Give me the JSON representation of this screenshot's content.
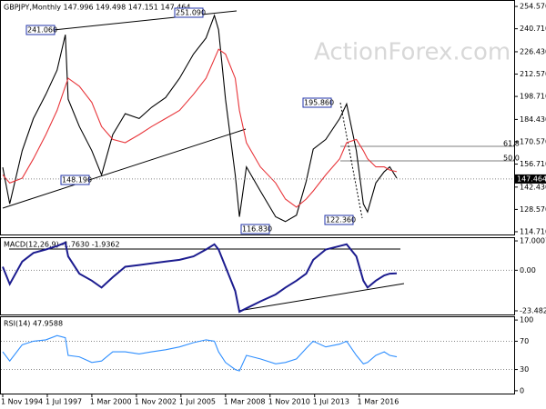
{
  "chart_data": [
    {
      "type": "line",
      "title": "GBPJPY,Monthly  147.996 149.498 147.151 147.464",
      "x": [
        "1994-11",
        "1995-04",
        "1996-01",
        "1996-09",
        "1997-06",
        "1998-02",
        "1998-08",
        "1998-10",
        "1999-06",
        "2000-03",
        "2000-10",
        "2001-06",
        "2002-03",
        "2003-01",
        "2003-10",
        "2004-08",
        "2005-06",
        "2006-04",
        "2007-01",
        "2007-07",
        "2007-10",
        "2008-03",
        "2008-10",
        "2009-01",
        "2009-06",
        "2010-04",
        "2011-03",
        "2011-10",
        "2012-06",
        "2013-01",
        "2013-06",
        "2014-03",
        "2015-01",
        "2015-06",
        "2016-01",
        "2016-06",
        "2016-09",
        "2017-03",
        "2017-09",
        "2018-01",
        "2018-06"
      ],
      "series": [
        {
          "name": "GBPJPY",
          "color": "#000000",
          "values": [
            154.7,
            132,
            165,
            185,
            200,
            215,
            237,
            197,
            180,
            165,
            150,
            175,
            188,
            185,
            192,
            198,
            210,
            225,
            235,
            249,
            240,
            197,
            150,
            124,
            155,
            140,
            124,
            121,
            125,
            146,
            166,
            172,
            185,
            194,
            165,
            132,
            127,
            145,
            152,
            155,
            148
          ]
        },
        {
          "name": "MA",
          "color": "#e8353a",
          "values": [
            150,
            145,
            148,
            160,
            175,
            190,
            205,
            210,
            205,
            195,
            180,
            172,
            170,
            175,
            180,
            185,
            190,
            200,
            210,
            222,
            228,
            225,
            210,
            190,
            170,
            155,
            145,
            135,
            130,
            135,
            140,
            150,
            160,
            170,
            172,
            165,
            160,
            155,
            155,
            153,
            152
          ]
        }
      ],
      "last": 147.464,
      "annotations": [
        "251.090",
        "241.060",
        "195.860",
        "148.190",
        "116.830",
        "122.360",
        "61.8",
        "50.0"
      ],
      "watermark": "ActionForex.com",
      "ylim": [
        113,
        258
      ],
      "yticks": [
        {
          "value": 254.57,
          "label": "254.570"
        },
        {
          "value": 240.71,
          "label": "240.710"
        },
        {
          "value": 226.43,
          "label": "226.430"
        },
        {
          "value": 212.57,
          "label": "212.570"
        },
        {
          "value": 198.71,
          "label": "198.710"
        },
        {
          "value": 184.43,
          "label": "184.430"
        },
        {
          "value": 170.57,
          "label": "170.570"
        },
        {
          "value": 156.71,
          "label": "156.710"
        },
        {
          "value": 142.43,
          "label": "142.430"
        },
        {
          "value": 128.57,
          "label": "128.570"
        },
        {
          "value": 114.71,
          "label": "114.710"
        }
      ]
    },
    {
      "type": "line",
      "title": "MACD(12,26,9) -1.7630 -1.9362",
      "x": [
        "1994-11",
        "1995-04",
        "1996-01",
        "1996-09",
        "1997-06",
        "1998-02",
        "1998-08",
        "1998-10",
        "1999-06",
        "2000-03",
        "2000-10",
        "2001-06",
        "2002-03",
        "2003-01",
        "2003-10",
        "2004-08",
        "2005-06",
        "2006-04",
        "2007-01",
        "2007-07",
        "2007-10",
        "2008-03",
        "2008-10",
        "2009-01",
        "2009-06",
        "2010-04",
        "2011-03",
        "2011-10",
        "2012-06",
        "2013-01",
        "2013-06",
        "2014-03",
        "2015-01",
        "2015-06",
        "2016-01",
        "2016-06",
        "2016-09",
        "2017-03",
        "2017-09",
        "2018-01",
        "2018-06"
      ],
      "series": [
        {
          "name": "MACD",
          "color": "#1c1c8f",
          "values": [
            2,
            -8,
            5,
            10,
            12,
            14,
            16,
            8,
            -2,
            -6,
            -10,
            -4,
            2,
            3,
            4,
            5,
            6,
            8,
            12,
            15,
            12,
            2,
            -12,
            -24,
            -22,
            -18,
            -14,
            -10,
            -6,
            -2,
            6,
            12,
            14,
            15,
            8,
            -6,
            -10,
            -6,
            -3,
            -2,
            -1.763
          ]
        }
      ],
      "ylim": [
        -25.6,
        18.6
      ],
      "yticks": [
        {
          "value": 17.0007,
          "label": "17.0007"
        },
        {
          "value": 0,
          "label": "0.00"
        },
        {
          "value": -23.4823,
          "label": "-23.4823"
        }
      ]
    },
    {
      "type": "line",
      "title": "RSI(14) 47.9588",
      "x": [
        "1994-11",
        "1995-04",
        "1996-01",
        "1996-09",
        "1997-06",
        "1998-02",
        "1998-08",
        "1998-10",
        "1999-06",
        "2000-03",
        "2000-10",
        "2001-06",
        "2002-03",
        "2003-01",
        "2003-10",
        "2004-08",
        "2005-06",
        "2006-04",
        "2007-01",
        "2007-07",
        "2007-10",
        "2008-03",
        "2008-10",
        "2009-01",
        "2009-06",
        "2010-04",
        "2011-03",
        "2011-10",
        "2012-06",
        "2013-01",
        "2013-06",
        "2014-03",
        "2015-01",
        "2015-06",
        "2016-01",
        "2016-06",
        "2016-09",
        "2017-03",
        "2017-09",
        "2018-01",
        "2018-06"
      ],
      "series": [
        {
          "name": "RSI",
          "color": "#2f8fff",
          "values": [
            55,
            42,
            65,
            70,
            72,
            78,
            75,
            50,
            48,
            40,
            42,
            55,
            55,
            52,
            55,
            58,
            62,
            68,
            72,
            70,
            55,
            40,
            30,
            28,
            50,
            45,
            38,
            40,
            45,
            60,
            70,
            62,
            66,
            70,
            50,
            38,
            40,
            50,
            55,
            50,
            47.9588
          ]
        }
      ],
      "ylim": [
        -4,
        104
      ],
      "yticks": [
        100,
        70,
        30,
        0
      ],
      "xticks": [
        {
          "value": "1994-11",
          "label": "1 Nov 1994"
        },
        {
          "value": "1997-07",
          "label": "1 Jul 1997"
        },
        {
          "value": "2000-03",
          "label": "1 Mar 2000"
        },
        {
          "value": "2002-11",
          "label": "1 Nov 2002"
        },
        {
          "value": "2005-07",
          "label": "1 Jul 2005"
        },
        {
          "value": "2008-03",
          "label": "1 Mar 2008"
        },
        {
          "value": "2010-11",
          "label": "1 Nov 2010"
        },
        {
          "value": "2013-07",
          "label": "1 Jul 2013"
        },
        {
          "value": "2016-03",
          "label": "1 Mar 2016"
        }
      ]
    }
  ]
}
